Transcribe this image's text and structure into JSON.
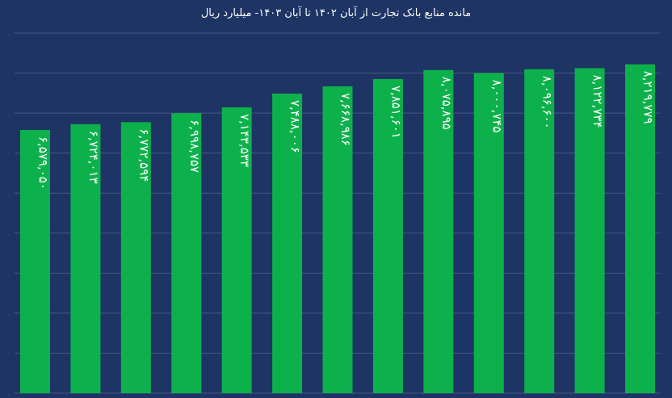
{
  "chart_data": {
    "type": "bar",
    "title": "مانده منابع بانک تجارت از آبان ۱۴۰۲ تا آبان ۱۴۰۳- میلیارد ریال",
    "xlabel": "",
    "ylabel": "",
    "categories": [
      "",
      "",
      "",
      "",
      "",
      "",
      "",
      "",
      "",
      "",
      "",
      "",
      ""
    ],
    "values": [
      6579050,
      6724013,
      6772594,
      6998757,
      7143533,
      7488006,
      7668986,
      7851601,
      8075895,
      8000745,
      8096600,
      8122734,
      8219779
    ],
    "value_labels": [
      "۶,۵۷۹,۰۵۰",
      "۶,۷۲۴,۰۱۳",
      "۶,۷۷۲,۵۹۴",
      "۶,۹۹۸,۷۵۷",
      "۷,۱۴۳,۵۳۳",
      "۷,۴۸۸,۰۰۶",
      "۷,۶۶۸,۹۸۶",
      "۷,۸۵۱,۶۰۱",
      "۸,۰۷۵,۸۹۵",
      "۸,۰۰۰,۷۴۵",
      "۸,۰۹۶,۶۰۰",
      "۸,۱۲۲,۷۳۴",
      "۸,۲۱۹,۷۷۹"
    ],
    "ylim": [
      0,
      9000000
    ],
    "yticks": [
      0,
      1000000,
      2000000,
      3000000,
      4000000,
      5000000,
      6000000,
      7000000,
      8000000,
      9000000
    ],
    "grid": true,
    "legend": "none",
    "colors": {
      "background": "#1e3464",
      "bar": "#0db14b",
      "text": "#ffffff",
      "grid": "#ffffff"
    }
  }
}
